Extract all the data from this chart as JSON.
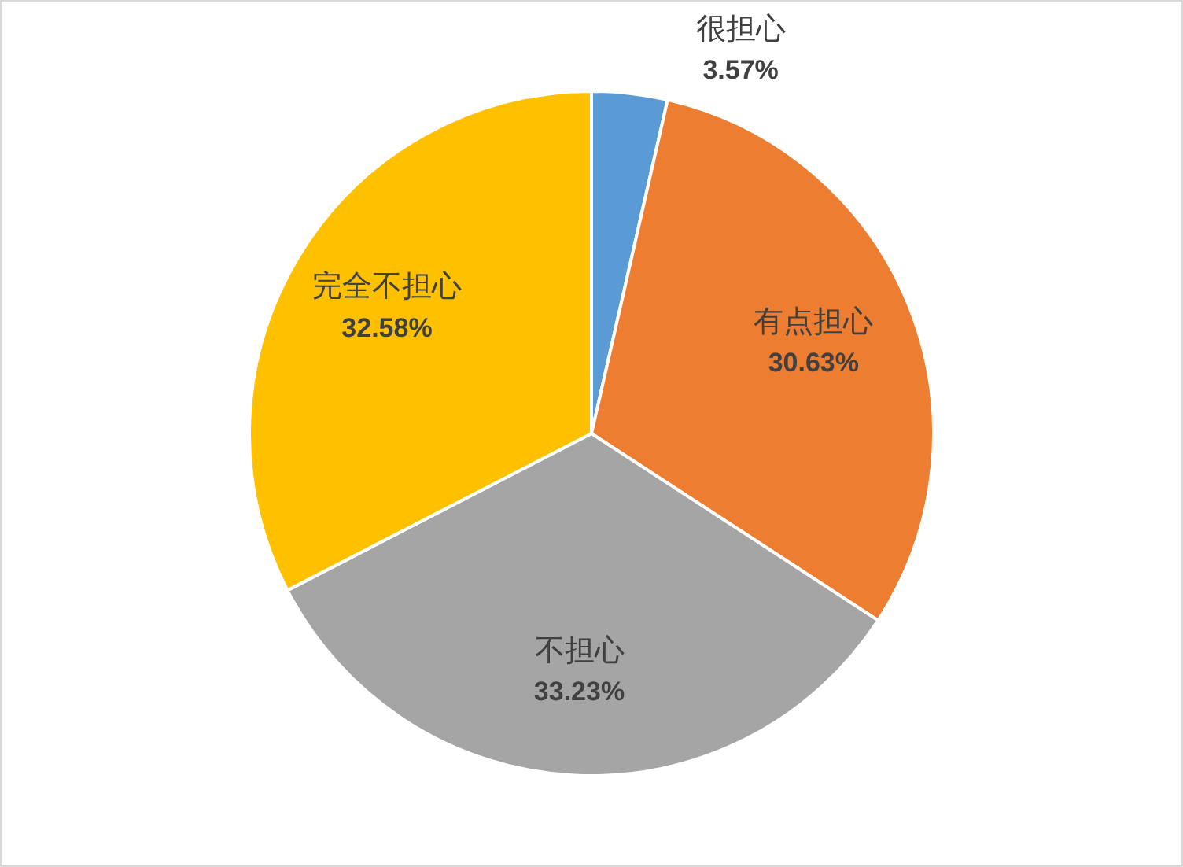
{
  "chart_data": {
    "type": "pie",
    "categories": [
      "很担心",
      "有点担心",
      "不担心",
      "完全不担心"
    ],
    "values": [
      3.57,
      30.63,
      33.23,
      32.58
    ],
    "colors": [
      "#5b9bd5",
      "#ed7d31",
      "#a5a5a5",
      "#ffc000"
    ],
    "value_labels": [
      "3.57%",
      "30.63%",
      "33.23%",
      "32.58%"
    ],
    "legend": false
  }
}
